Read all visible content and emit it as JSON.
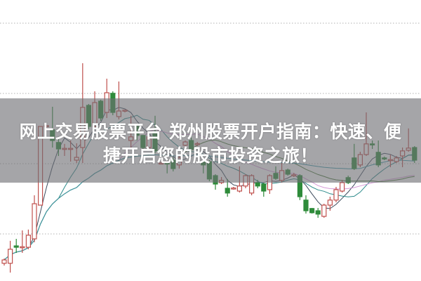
{
  "title_lines": [
    "网上交易股票平台 郑州股票开户指南：快速、便",
    "捷开启您的股市投资之旅！"
  ],
  "chart_data": {
    "type": "candlestick",
    "title": "",
    "xlabel": "",
    "ylabel": "",
    "ylim": [
      0,
      100
    ],
    "grid": true,
    "gridlines": [
      16.75,
      41.75,
      66.75,
      91.75
    ],
    "colors": {
      "up": "#c0504d",
      "down": "#2e8b3a",
      "grid": "#b0b0b0",
      "ma": [
        "#3c4a5c",
        "#2a8a8a",
        "#d79bd8",
        "#4a7a3a",
        "#3a9aa8"
      ]
    },
    "moving_averages": [
      5,
      10,
      20,
      30,
      60
    ],
    "candles_ohlc": [
      [
        6.3,
        7.5,
        8,
        5.5
      ],
      [
        6.3,
        11.3,
        14.3,
        3
      ],
      [
        12.5,
        12,
        15,
        10
      ],
      [
        12,
        12.2,
        18,
        10
      ],
      [
        12,
        16.3,
        18.3,
        11.3
      ],
      [
        15,
        27.5,
        30.5,
        13.8
      ],
      [
        27,
        55,
        55,
        27
      ],
      [
        55,
        55.3,
        55.5,
        54.5
      ],
      [
        53.8,
        50,
        62,
        47.5
      ],
      [
        49.3,
        47,
        51.3,
        44.5
      ],
      [
        47,
        47.2,
        48.8,
        44.5
      ],
      [
        47,
        47.2,
        50,
        42.5
      ],
      [
        43,
        44,
        49,
        42
      ],
      [
        47.5,
        61.8,
        77.5,
        42
      ],
      [
        62.5,
        55,
        63,
        54
      ],
      [
        55,
        63.5,
        67.5,
        54
      ],
      [
        64,
        58,
        64.5,
        57
      ],
      [
        60,
        67,
        72,
        58
      ],
      [
        66.8,
        60,
        67.5,
        59
      ],
      [
        58.5,
        60.5,
        71,
        57.5
      ],
      [
        60.5,
        60.8,
        61,
        60
      ],
      [
        50,
        51.3,
        58.8,
        47.5
      ],
      [
        55,
        51.8,
        56,
        50
      ],
      [
        51.8,
        47.5,
        52,
        47
      ],
      [
        47.5,
        51.3,
        52,
        47
      ],
      [
        52.5,
        46.3,
        58.8,
        45.5
      ],
      [
        41.8,
        42,
        42.5,
        41.5
      ],
      [
        42,
        41.8,
        42.5,
        38.3
      ],
      [
        43,
        40,
        44,
        39
      ],
      [
        41.3,
        43.8,
        45,
        40
      ],
      [
        48.3,
        49.5,
        50,
        47
      ],
      [
        50,
        46.8,
        51,
        46
      ],
      [
        48.8,
        48.9,
        49.5,
        48
      ],
      [
        42.5,
        41.3,
        43,
        38.3
      ],
      [
        42.5,
        36.3,
        43,
        35.5
      ],
      [
        37.5,
        34.5,
        38,
        32.5
      ],
      [
        35,
        35.8,
        37,
        34.5
      ],
      [
        33,
        31.3,
        36.3,
        30
      ],
      [
        33,
        33.1,
        33.5,
        32.5
      ],
      [
        32,
        33.8,
        40.8,
        31.5
      ],
      [
        33.8,
        37.5,
        38,
        33
      ],
      [
        31.3,
        37.5,
        38,
        30.5
      ],
      [
        35,
        33.8,
        36,
        33
      ],
      [
        34.5,
        32,
        35,
        30
      ],
      [
        32.5,
        37.5,
        38,
        31
      ],
      [
        38.3,
        36.5,
        40.8,
        36
      ],
      [
        35.8,
        39.3,
        42,
        35
      ],
      [
        39.5,
        38,
        40,
        37.5
      ],
      [
        37.5,
        37.8,
        38.5,
        37
      ],
      [
        37.5,
        30,
        38,
        28.8
      ],
      [
        28.8,
        25,
        30.5,
        24
      ],
      [
        25.8,
        24.3,
        26,
        24
      ],
      [
        25,
        23.8,
        26,
        22.5
      ],
      [
        23,
        27,
        27.5,
        22.5
      ],
      [
        27,
        28.8,
        30,
        25
      ],
      [
        28.8,
        32.5,
        33.5,
        28
      ],
      [
        32,
        35,
        36,
        31.5
      ],
      [
        36.8,
        35,
        37.5,
        34.5
      ],
      [
        43.8,
        40,
        48.8,
        39.5
      ],
      [
        41.3,
        45,
        46,
        40.5
      ],
      [
        45,
        48.8,
        60,
        44.5
      ],
      [
        48.8,
        48.5,
        50,
        47
      ],
      [
        45.8,
        41.3,
        50,
        40.5
      ],
      [
        43.8,
        43.5,
        44.3,
        43
      ],
      [
        43,
        43.2,
        45,
        40.5
      ],
      [
        42.5,
        43.8,
        44.5,
        42
      ],
      [
        44.5,
        46.3,
        47.5,
        40.5
      ],
      [
        46.5,
        47.3,
        54.3,
        46
      ],
      [
        47.5,
        43,
        48,
        42
      ]
    ]
  }
}
